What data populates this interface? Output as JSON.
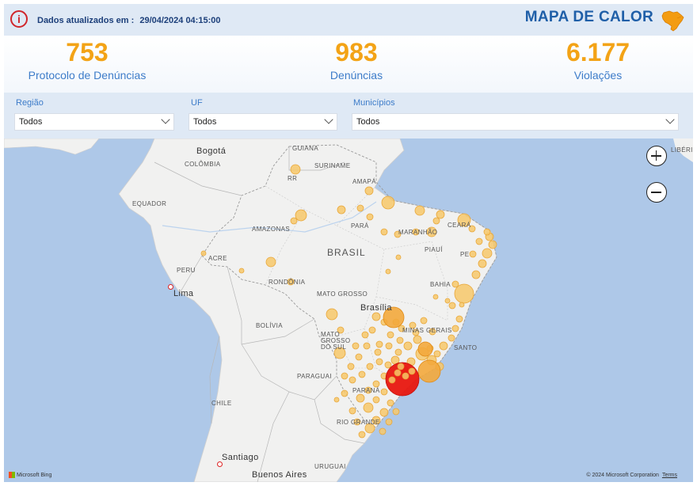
{
  "header": {
    "updated_label": "Dados atualizados em :",
    "updated_value": "29/04/2024 04:15:00",
    "title": "MAPA DE CALOR",
    "info_icon": "info-icon",
    "brazil_icon": "brazil-map-icon"
  },
  "kpis": [
    {
      "value": "753",
      "label": "Protocolo de Denúncias"
    },
    {
      "value": "983",
      "label": "Denúncias"
    },
    {
      "value": "6.177",
      "label": "Violações"
    }
  ],
  "filters": {
    "regiao": {
      "label": "Região",
      "value": "Todos"
    },
    "uf": {
      "label": "UF",
      "value": "Todos"
    },
    "municipios": {
      "label": "Municípios",
      "value": "Todos"
    }
  },
  "map": {
    "labels": {
      "bogota": "Bogotá",
      "colombia": "COLÔMBIA",
      "guiana": "GUIANA",
      "suriname": "SURINAME",
      "equador": "EQUADOR",
      "rr": "RR",
      "amapa": "AMAPÁ",
      "amazonas": "AMAZONAS",
      "para": "PARÁ",
      "maranhao": "MARANHÃO",
      "ceara": "CEARÁ",
      "brasil": "BRASIL",
      "peru": "PERU",
      "acre": "ACRE",
      "piaui": "PIAUÍ",
      "pe": "PE",
      "rondonia": "RONDÔNIA",
      "lima": "Lima",
      "bahia": "BAHIA",
      "mato_grosso": "MATO GROSSO",
      "brasilia": "Brasília",
      "bolivia": "BOLÍVIA",
      "minas_gerais": "MINAS GERAIS",
      "mato_grosso_do_sul": "MATO GROSSO DO SUL",
      "santo": "SANTO",
      "paraguai": "PARAGUAI",
      "parana": "PARANÁ",
      "chile": "CHILE",
      "rio_grande": "RIO GRANDE",
      "santiago": "Santiago",
      "buenos_aires": "Buenos Aires",
      "uruguai": "URUGUAI",
      "liberia_partial": "LIBÉRI"
    },
    "zoom_in": "+",
    "zoom_out": "−",
    "attribution": "Microsoft Bing",
    "copyright": "© 2024 Microsoft Corporation",
    "terms": "Terms",
    "colors": {
      "ocean": "#aec8e8",
      "land": "#f1f1f0",
      "bubble": "#f7c86a",
      "bubble_stroke": "#e8a73a",
      "hotspot": "#e8170f"
    }
  }
}
